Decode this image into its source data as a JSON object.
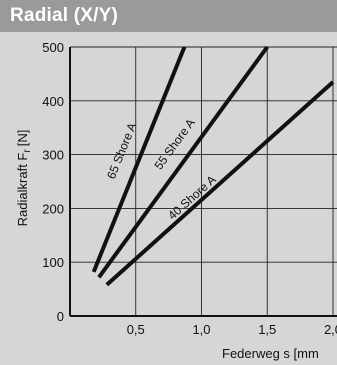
{
  "header": {
    "title": "Radial (X/Y)"
  },
  "colors": {
    "background": "#d6d6d6",
    "header": "#9a9a9a",
    "line": "#111111",
    "grid": "#222222"
  },
  "chart_data": {
    "type": "line",
    "title": "",
    "ylabel": "Radialkraft F",
    "ylabel_subscript": "r",
    "ylabel_unit": "[N]",
    "xlabel": "Federweg s [mm",
    "xlim": [
      0,
      2.0
    ],
    "ylim": [
      0,
      500
    ],
    "xticks": [
      0.5,
      1.0,
      1.5,
      2.0
    ],
    "xtick_labels": [
      "0,5",
      "1,0",
      "1,5",
      "2,0"
    ],
    "yticks": [
      0,
      100,
      200,
      300,
      400,
      500
    ],
    "ytick_labels": [
      "0",
      "100",
      "200",
      "300",
      "400",
      "500"
    ],
    "grid": true,
    "series": [
      {
        "name": "65 Shore A",
        "x": [
          0.18,
          0.87
        ],
        "y": [
          82,
          500
        ]
      },
      {
        "name": "55 Shore A",
        "x": [
          0.22,
          1.5
        ],
        "y": [
          72,
          500
        ]
      },
      {
        "name": "40 Shore A",
        "x": [
          0.28,
          2.0
        ],
        "y": [
          58,
          435
        ]
      }
    ]
  }
}
